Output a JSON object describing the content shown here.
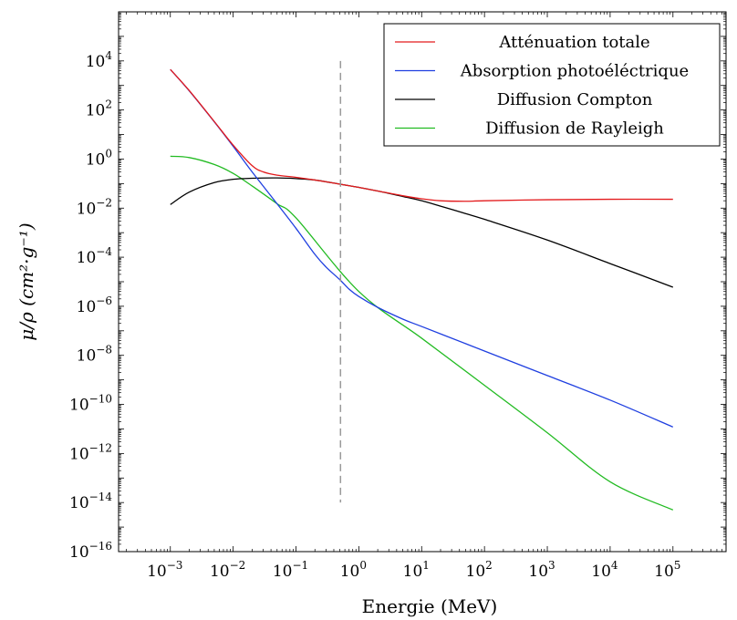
{
  "chart_data": {
    "type": "line",
    "title": "",
    "xlabel": "Energie (MeV)",
    "ylabel": "μ/ρ (cm²·g⁻¹)",
    "xscale": "log",
    "yscale": "log",
    "xlim": [
      0.00015,
      700000
    ],
    "ylim": [
      1e-16,
      1000000.0
    ],
    "grid": false,
    "legend_position": "top-right",
    "x_ticks": [
      {
        "value": 0.001,
        "base": "10",
        "exp": "−3"
      },
      {
        "value": 0.01,
        "base": "10",
        "exp": "−2"
      },
      {
        "value": 0.1,
        "base": "10",
        "exp": "−1"
      },
      {
        "value": 1,
        "base": "10",
        "exp": "0"
      },
      {
        "value": 10,
        "base": "10",
        "exp": "1"
      },
      {
        "value": 100,
        "base": "10",
        "exp": "2"
      },
      {
        "value": 1000,
        "base": "10",
        "exp": "3"
      },
      {
        "value": 10000,
        "base": "10",
        "exp": "4"
      },
      {
        "value": 100000,
        "base": "10",
        "exp": "5"
      }
    ],
    "y_ticks": [
      {
        "value": 10000.0,
        "base": "10",
        "exp": "4"
      },
      {
        "value": 100.0,
        "base": "10",
        "exp": "2"
      },
      {
        "value": 1,
        "base": "10",
        "exp": "0"
      },
      {
        "value": 0.01,
        "base": "10",
        "exp": "−2"
      },
      {
        "value": 0.0001,
        "base": "10",
        "exp": "−4"
      },
      {
        "value": 1e-06,
        "base": "10",
        "exp": "−6"
      },
      {
        "value": 1e-08,
        "base": "10",
        "exp": "−8"
      },
      {
        "value": 1e-10,
        "base": "10",
        "exp": "−10"
      },
      {
        "value": 1e-12,
        "base": "10",
        "exp": "−12"
      },
      {
        "value": 1e-14,
        "base": "10",
        "exp": "−14"
      },
      {
        "value": 1e-16,
        "base": "10",
        "exp": "−16"
      }
    ],
    "reference_line": {
      "x": 0.511,
      "y_from": 1e-14,
      "y_to": 10000.0,
      "style": "dashed",
      "color": "#999999"
    },
    "series": [
      {
        "name": "Atténuation totale",
        "color": "#e31a1c",
        "x": [
          0.001,
          0.002,
          0.005,
          0.01,
          0.02,
          0.03,
          0.05,
          0.1,
          0.2,
          0.5,
          1,
          2,
          5,
          10,
          20,
          50,
          100,
          1000,
          10000,
          100000
        ],
        "y": [
          4500,
          620,
          34,
          3.7,
          0.54,
          0.3,
          0.22,
          0.18,
          0.14,
          0.095,
          0.07,
          0.05,
          0.032,
          0.024,
          0.02,
          0.019,
          0.02,
          0.022,
          0.023,
          0.023
        ]
      },
      {
        "name": "Absorption photoéléctrique",
        "color": "#1f3fe0",
        "x": [
          0.001,
          0.002,
          0.005,
          0.01,
          0.02,
          0.05,
          0.1,
          0.2,
          0.3,
          0.5,
          0.7,
          1,
          2,
          5,
          10,
          50,
          100,
          1000,
          10000,
          100000
        ],
        "y": [
          4500,
          600,
          33,
          3.3,
          0.3,
          0.015,
          0.0015,
          0.00013,
          4e-05,
          1.2e-05,
          5e-06,
          2.5e-06,
          9e-07,
          3e-07,
          1.5e-07,
          3e-08,
          1.5e-08,
          1.5e-09,
          1.5e-10,
          1.2e-11
        ]
      },
      {
        "name": "Diffusion Compton",
        "color": "#000000",
        "x": [
          0.001,
          0.002,
          0.005,
          0.01,
          0.02,
          0.05,
          0.1,
          0.2,
          0.5,
          1,
          2,
          5,
          10,
          20,
          50,
          100,
          1000,
          10000,
          100000
        ],
        "y": [
          0.014,
          0.045,
          0.11,
          0.15,
          0.165,
          0.17,
          0.16,
          0.14,
          0.095,
          0.07,
          0.05,
          0.03,
          0.02,
          0.012,
          0.006,
          0.0035,
          0.0005,
          5.5e-05,
          6e-06
        ]
      },
      {
        "name": "Diffusion de Rayleigh",
        "color": "#22bb22",
        "x": [
          0.001,
          0.002,
          0.005,
          0.01,
          0.02,
          0.05,
          0.1,
          1,
          10,
          100,
          1000,
          10000,
          100000
        ],
        "y": [
          1.3,
          1.15,
          0.6,
          0.26,
          0.08,
          0.015,
          0.004,
          4e-06,
          5e-08,
          6e-10,
          7e-12,
          7e-14,
          5e-15
        ]
      }
    ]
  }
}
